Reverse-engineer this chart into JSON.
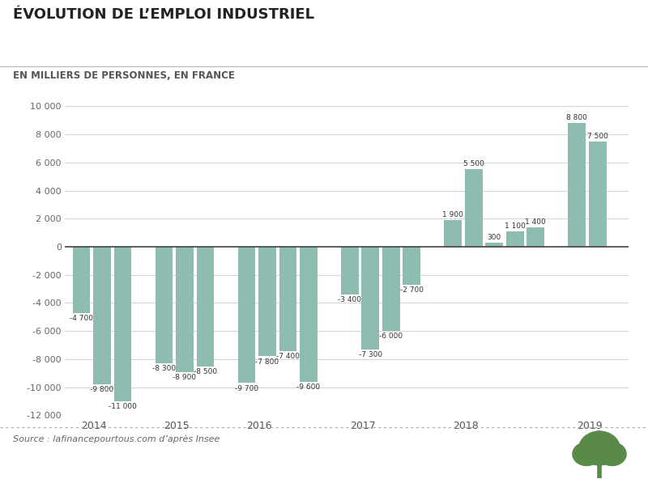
{
  "title": "ÉVOLUTION DE L’EMPLOI INDUSTRIEL",
  "subtitle": "EN MILLIERS DE PERSONNES, EN FRANCE",
  "source": "Source : lafinancepourtous.com d’après Insee",
  "bar_color": "#8fbcb0",
  "background_color": "#ffffff",
  "values": [
    -4700,
    -9800,
    -11000,
    -8300,
    -8900,
    -8500,
    -9700,
    -7800,
    -7400,
    -9600,
    -3400,
    -7300,
    -6000,
    -2700,
    1900,
    5500,
    300,
    1100,
    1400,
    8800,
    7500
  ],
  "labels": [
    "-4 700",
    "-9 800",
    "-11 000",
    "-8 300",
    "-8 900",
    "-8 500",
    "-9 700",
    "-7 800",
    "-7 400",
    "-9 600",
    "-3 400",
    "-7 300",
    "-6 000",
    "-2 700",
    "1 900",
    "5 500",
    "300",
    "1 100",
    "1 400",
    "8 800",
    "7 500"
  ],
  "x_positions": [
    0,
    1,
    2,
    4,
    5,
    6,
    8,
    9,
    10,
    11,
    13,
    14,
    15,
    16,
    18,
    19,
    20,
    21,
    22,
    24,
    25
  ],
  "year_tick_positions": [
    0,
    4,
    8,
    13,
    18,
    24
  ],
  "year_labels": [
    "2014",
    "2015",
    "2016",
    "2017",
    "2018",
    "2019"
  ],
  "ylim": [
    -12000,
    10000
  ],
  "yticks": [
    -12000,
    -10000,
    -8000,
    -6000,
    -4000,
    -2000,
    0,
    2000,
    4000,
    6000,
    8000,
    10000
  ],
  "ytick_labels": [
    "-12 000",
    "-10 000",
    "-8 000",
    "-6 000",
    "-4 000",
    "-2 000",
    "0",
    "2 000",
    "4 000",
    "6 000",
    "8 000",
    "10 000"
  ],
  "tree_color": "#5a8a4a"
}
